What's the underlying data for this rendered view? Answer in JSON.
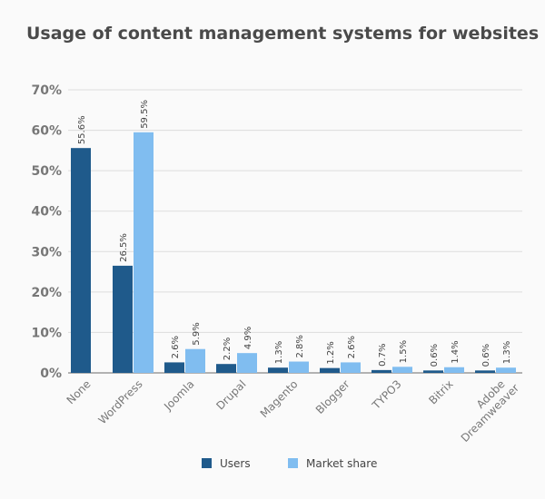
{
  "chart_data": {
    "type": "bar",
    "title": "Usage of content management systems for websites",
    "categories": [
      "None",
      "WordPress",
      "Joomla",
      "Drupal",
      "Magento",
      "Blogger",
      "TYPO3",
      "Bitrix",
      "Adobe Dreamweaver"
    ],
    "series": [
      {
        "name": "Users",
        "color": "#1f5a8b",
        "values": [
          55.6,
          26.5,
          2.6,
          2.2,
          1.3,
          1.2,
          0.7,
          0.6,
          0.6
        ]
      },
      {
        "name": "Market share",
        "color": "#80bdf0",
        "values": [
          null,
          59.5,
          5.9,
          4.9,
          2.8,
          2.6,
          1.5,
          1.4,
          1.3
        ]
      }
    ],
    "data_labels": [
      [
        "55.6%",
        "26.5%",
        "2.6%",
        "2.2%",
        "1.3%",
        "1.2%",
        "0.7%",
        "0.6%",
        "0.6%"
      ],
      [
        null,
        "59.5%",
        "5.9%",
        "4.9%",
        "2.8%",
        "2.6%",
        "1.5%",
        "1.4%",
        "1.3%"
      ]
    ],
    "yticks": [
      "0%",
      "10%",
      "20%",
      "30%",
      "40%",
      "50%",
      "60%",
      "70%"
    ],
    "ylim": [
      0,
      70
    ],
    "grid": true,
    "legend": "bottom"
  }
}
